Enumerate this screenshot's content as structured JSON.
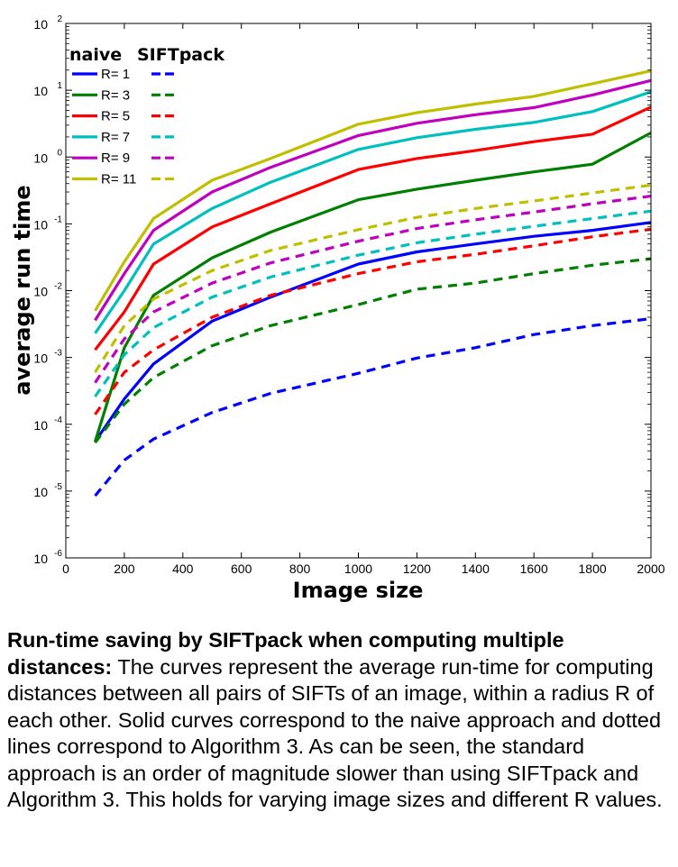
{
  "chart_data": {
    "type": "line",
    "title": "",
    "xlabel": "Image size",
    "ylabel": "average run time",
    "xlim": [
      0,
      2000
    ],
    "ylim": [
      1e-06,
      100
    ],
    "y_scale": "log",
    "grid": false,
    "legend_position": "top-left",
    "legend_headers": [
      "naive",
      "SIFTpack"
    ],
    "x_ticks": [
      "0",
      "200",
      "400",
      "600",
      "800",
      "1000",
      "1200",
      "1400",
      "1600",
      "1800",
      "2000"
    ],
    "y_ticks": [
      {
        "base": "10",
        "exp": "-6"
      },
      {
        "base": "10",
        "exp": "-5"
      },
      {
        "base": "10",
        "exp": "-4"
      },
      {
        "base": "10",
        "exp": "-3"
      },
      {
        "base": "10",
        "exp": "-2"
      },
      {
        "base": "10",
        "exp": "-1"
      },
      {
        "base": "10",
        "exp": "0"
      },
      {
        "base": "10",
        "exp": "1"
      },
      {
        "base": "10",
        "exp": "2"
      }
    ],
    "x": [
      100,
      200,
      300,
      500,
      700,
      1000,
      1200,
      1400,
      1600,
      1800,
      2000
    ],
    "series": [
      {
        "name": "R= 1",
        "group": "naive",
        "color": "#0000ff",
        "dash": false,
        "values": [
          5.5e-05,
          0.00024,
          0.0008,
          0.0035,
          0.008,
          0.025,
          0.038,
          0.05,
          0.065,
          0.08,
          0.105
        ]
      },
      {
        "name": "R= 3",
        "group": "naive",
        "color": "#007f00",
        "dash": false,
        "values": [
          5.5e-05,
          0.0014,
          0.0085,
          0.031,
          0.075,
          0.23,
          0.33,
          0.45,
          0.6,
          0.78,
          2.3
        ]
      },
      {
        "name": "R= 5",
        "group": "naive",
        "color": "#ff0000",
        "dash": false,
        "values": [
          0.0013,
          0.0048,
          0.025,
          0.09,
          0.2,
          0.65,
          0.95,
          1.25,
          1.7,
          2.2,
          5.6
        ]
      },
      {
        "name": "R= 7",
        "group": "naive",
        "color": "#00bfbf",
        "dash": false,
        "values": [
          0.0023,
          0.01,
          0.05,
          0.17,
          0.42,
          1.3,
          1.95,
          2.6,
          3.3,
          4.8,
          9.5
        ]
      },
      {
        "name": "R= 9",
        "group": "naive",
        "color": "#bf00bf",
        "dash": false,
        "values": [
          0.0036,
          0.018,
          0.08,
          0.3,
          0.7,
          2.1,
          3.2,
          4.3,
          5.5,
          8.5,
          14
        ]
      },
      {
        "name": "R= 11",
        "group": "naive",
        "color": "#bfbf00",
        "dash": false,
        "values": [
          0.005,
          0.027,
          0.12,
          0.45,
          0.95,
          3.1,
          4.6,
          6.2,
          8.1,
          12.5,
          19.5
        ]
      },
      {
        "name": "R= 1",
        "group": "SIFTpack",
        "color": "#0000ff",
        "dash": true,
        "values": [
          8.5e-06,
          2.9e-05,
          6e-05,
          0.00015,
          0.00029,
          0.00058,
          0.00098,
          0.0014,
          0.0022,
          0.003,
          0.0038
        ]
      },
      {
        "name": "R= 3",
        "group": "SIFTpack",
        "color": "#007f00",
        "dash": true,
        "values": [
          5.3e-05,
          0.0002,
          0.0005,
          0.0015,
          0.003,
          0.0062,
          0.0105,
          0.013,
          0.018,
          0.024,
          0.03
        ]
      },
      {
        "name": "R= 5",
        "group": "SIFTpack",
        "color": "#ff0000",
        "dash": true,
        "values": [
          0.00014,
          0.0006,
          0.0013,
          0.004,
          0.0085,
          0.018,
          0.027,
          0.035,
          0.047,
          0.064,
          0.083
        ]
      },
      {
        "name": "R= 7",
        "group": "SIFTpack",
        "color": "#00bfbf",
        "dash": true,
        "values": [
          0.00026,
          0.0011,
          0.0028,
          0.008,
          0.016,
          0.034,
          0.052,
          0.07,
          0.092,
          0.12,
          0.155
        ]
      },
      {
        "name": "R= 9",
        "group": "SIFTpack",
        "color": "#bf00bf",
        "dash": true,
        "values": [
          0.00042,
          0.0019,
          0.0048,
          0.013,
          0.026,
          0.055,
          0.085,
          0.115,
          0.15,
          0.2,
          0.26
        ]
      },
      {
        "name": "R= 11",
        "group": "SIFTpack",
        "color": "#bfbf00",
        "dash": true,
        "values": [
          0.0006,
          0.003,
          0.0075,
          0.02,
          0.04,
          0.082,
          0.125,
          0.17,
          0.22,
          0.29,
          0.38
        ]
      }
    ]
  },
  "caption": {
    "lead": "Run-time saving by SIFTpack when computing multiple distances:",
    "body": " The curves represent the average run-time for computing distances between all pairs of SIFTs of an image, within a radius R of each other. Solid curves correspond to the naive approach and dotted lines correspond to Algorithm 3. As can be seen, the standard approach is an order of magnitude slower than using SIFTpack and Algorithm 3. This holds for varying image sizes and different R values."
  }
}
